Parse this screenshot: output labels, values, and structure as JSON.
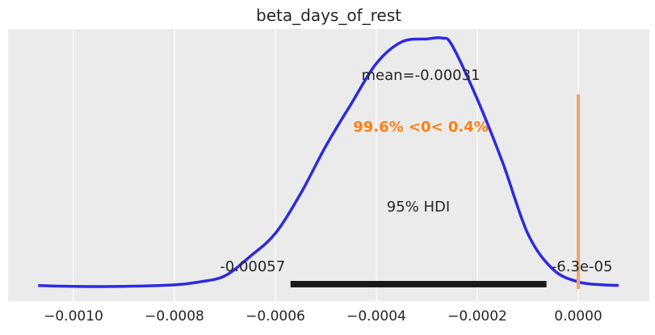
{
  "chart_data": {
    "type": "area",
    "title": "beta_days_of_rest",
    "xlabel": "",
    "ylabel": "",
    "xlim": [
      -0.00107,
      8e-05
    ],
    "grid": true,
    "x_ticks": [
      -0.001,
      -0.0008,
      -0.0006,
      -0.0004,
      -0.0002,
      0.0
    ],
    "x_tick_labels": [
      "−0.0010",
      "−0.0008",
      "−0.0006",
      "−0.0004",
      "−0.0002",
      "0.0000"
    ],
    "density_curve": {
      "color": "#2b2be0",
      "x": [
        -0.00107,
        -0.001,
        -0.0009,
        -0.0008,
        -0.00075,
        -0.0007,
        -0.00065,
        -0.0006,
        -0.00055,
        -0.0005,
        -0.00045,
        -0.0004,
        -0.00035,
        -0.0003,
        -0.00027,
        -0.00025,
        -0.0002,
        -0.00015,
        -0.0001,
        -5e-05,
        0.0,
        5e-05,
        8e-05
      ],
      "y": [
        0.007,
        0.004,
        0.004,
        0.01,
        0.022,
        0.046,
        0.124,
        0.216,
        0.375,
        0.565,
        0.733,
        0.895,
        0.981,
        0.993,
        0.996,
        0.967,
        0.752,
        0.5,
        0.215,
        0.072,
        0.022,
        0.01,
        0.008
      ]
    },
    "mean_label": "mean=-0.00031",
    "probability_label": "99.6% <0< 0.4%",
    "probability_color": "#ff7f0e",
    "reference_value": 0.0,
    "reference_color": "#f4a46a",
    "hdi_label": "95% HDI",
    "hdi": {
      "low": -0.00057,
      "high": -6.3e-05,
      "low_label": "-0.00057",
      "high_label": "-6.3e-05",
      "color": "#1a1a1a"
    }
  }
}
